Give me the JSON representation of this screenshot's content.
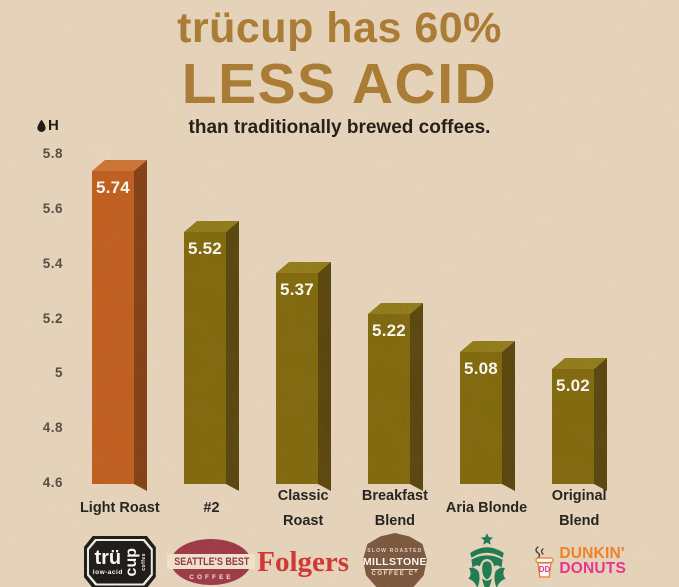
{
  "header": {
    "title_line1": "trücup has 60%",
    "title_line2": "LESS ACID",
    "subtitle": "than traditionally brewed coffees."
  },
  "colors": {
    "background": "#e9d6bd",
    "title": "#aa792e",
    "subtitle_text": "#1a1511",
    "highlight_bar": "#c05a1a",
    "default_bar": "#7d6505",
    "value_text": "#ffffff"
  },
  "chart_data": {
    "type": "bar",
    "title": "trücup has 60% LESS ACID",
    "subtitle": "than traditionally brewed coffees.",
    "xlabel": "",
    "ylabel": "pH",
    "ylabel_letter": "H",
    "ylim": [
      4.6,
      5.8
    ],
    "ytick_labels": [
      "5.8",
      "5.6",
      "5.4",
      "5.2",
      "5",
      "4.8",
      "4.6"
    ],
    "grid": false,
    "legend": false,
    "bars": [
      {
        "category": "Light Roast",
        "brand": "trücup",
        "value": 5.74,
        "value_label": "5.74",
        "front_color": "#c05a1a",
        "side_color": "#7f3c0e",
        "top_color": "#cc7231",
        "highlight": true
      },
      {
        "category": "#2",
        "brand": "Seattle's Best Coffee",
        "value": 5.52,
        "value_label": "5.52",
        "front_color": "#7d6505",
        "side_color": "#544106",
        "top_color": "#8e7913",
        "highlight": false
      },
      {
        "category": "Classic Roast",
        "brand": "Folgers",
        "value": 5.37,
        "value_label": "5.37",
        "front_color": "#7d6505",
        "side_color": "#544106",
        "top_color": "#8e7913",
        "highlight": false
      },
      {
        "category": "Breakfast Blend",
        "brand": "Millstone Coffee Co.",
        "value": 5.22,
        "value_label": "5.22",
        "front_color": "#7d6505",
        "side_color": "#544106",
        "top_color": "#8e7913",
        "highlight": false
      },
      {
        "category": "Aria Blonde",
        "brand": "Starbucks",
        "value": 5.08,
        "value_label": "5.08",
        "front_color": "#7d6505",
        "side_color": "#544106",
        "top_color": "#8e7913",
        "highlight": false
      },
      {
        "category": "Original Blend",
        "brand": "Dunkin' Donuts",
        "value": 5.02,
        "value_label": "5.02",
        "front_color": "#7d6505",
        "side_color": "#544106",
        "top_color": "#8e7913",
        "highlight": false
      }
    ]
  },
  "logos": {
    "trucup": {
      "word1": "trü",
      "word2": "cup",
      "tagline": "low-acid",
      "tagline2": "coffee"
    },
    "seattles_best": {
      "line1": "SEATTLE'S BEST",
      "line2": "COFFEE"
    },
    "folgers": {
      "text": "Folgers"
    },
    "millstone": {
      "arc_top": "SLOW ROASTED",
      "name": "MILLSTONE",
      "sub": "COFFEE Cº"
    },
    "dunkin": {
      "line1": "DUNKIN'",
      "line2": "DONUTS"
    }
  }
}
